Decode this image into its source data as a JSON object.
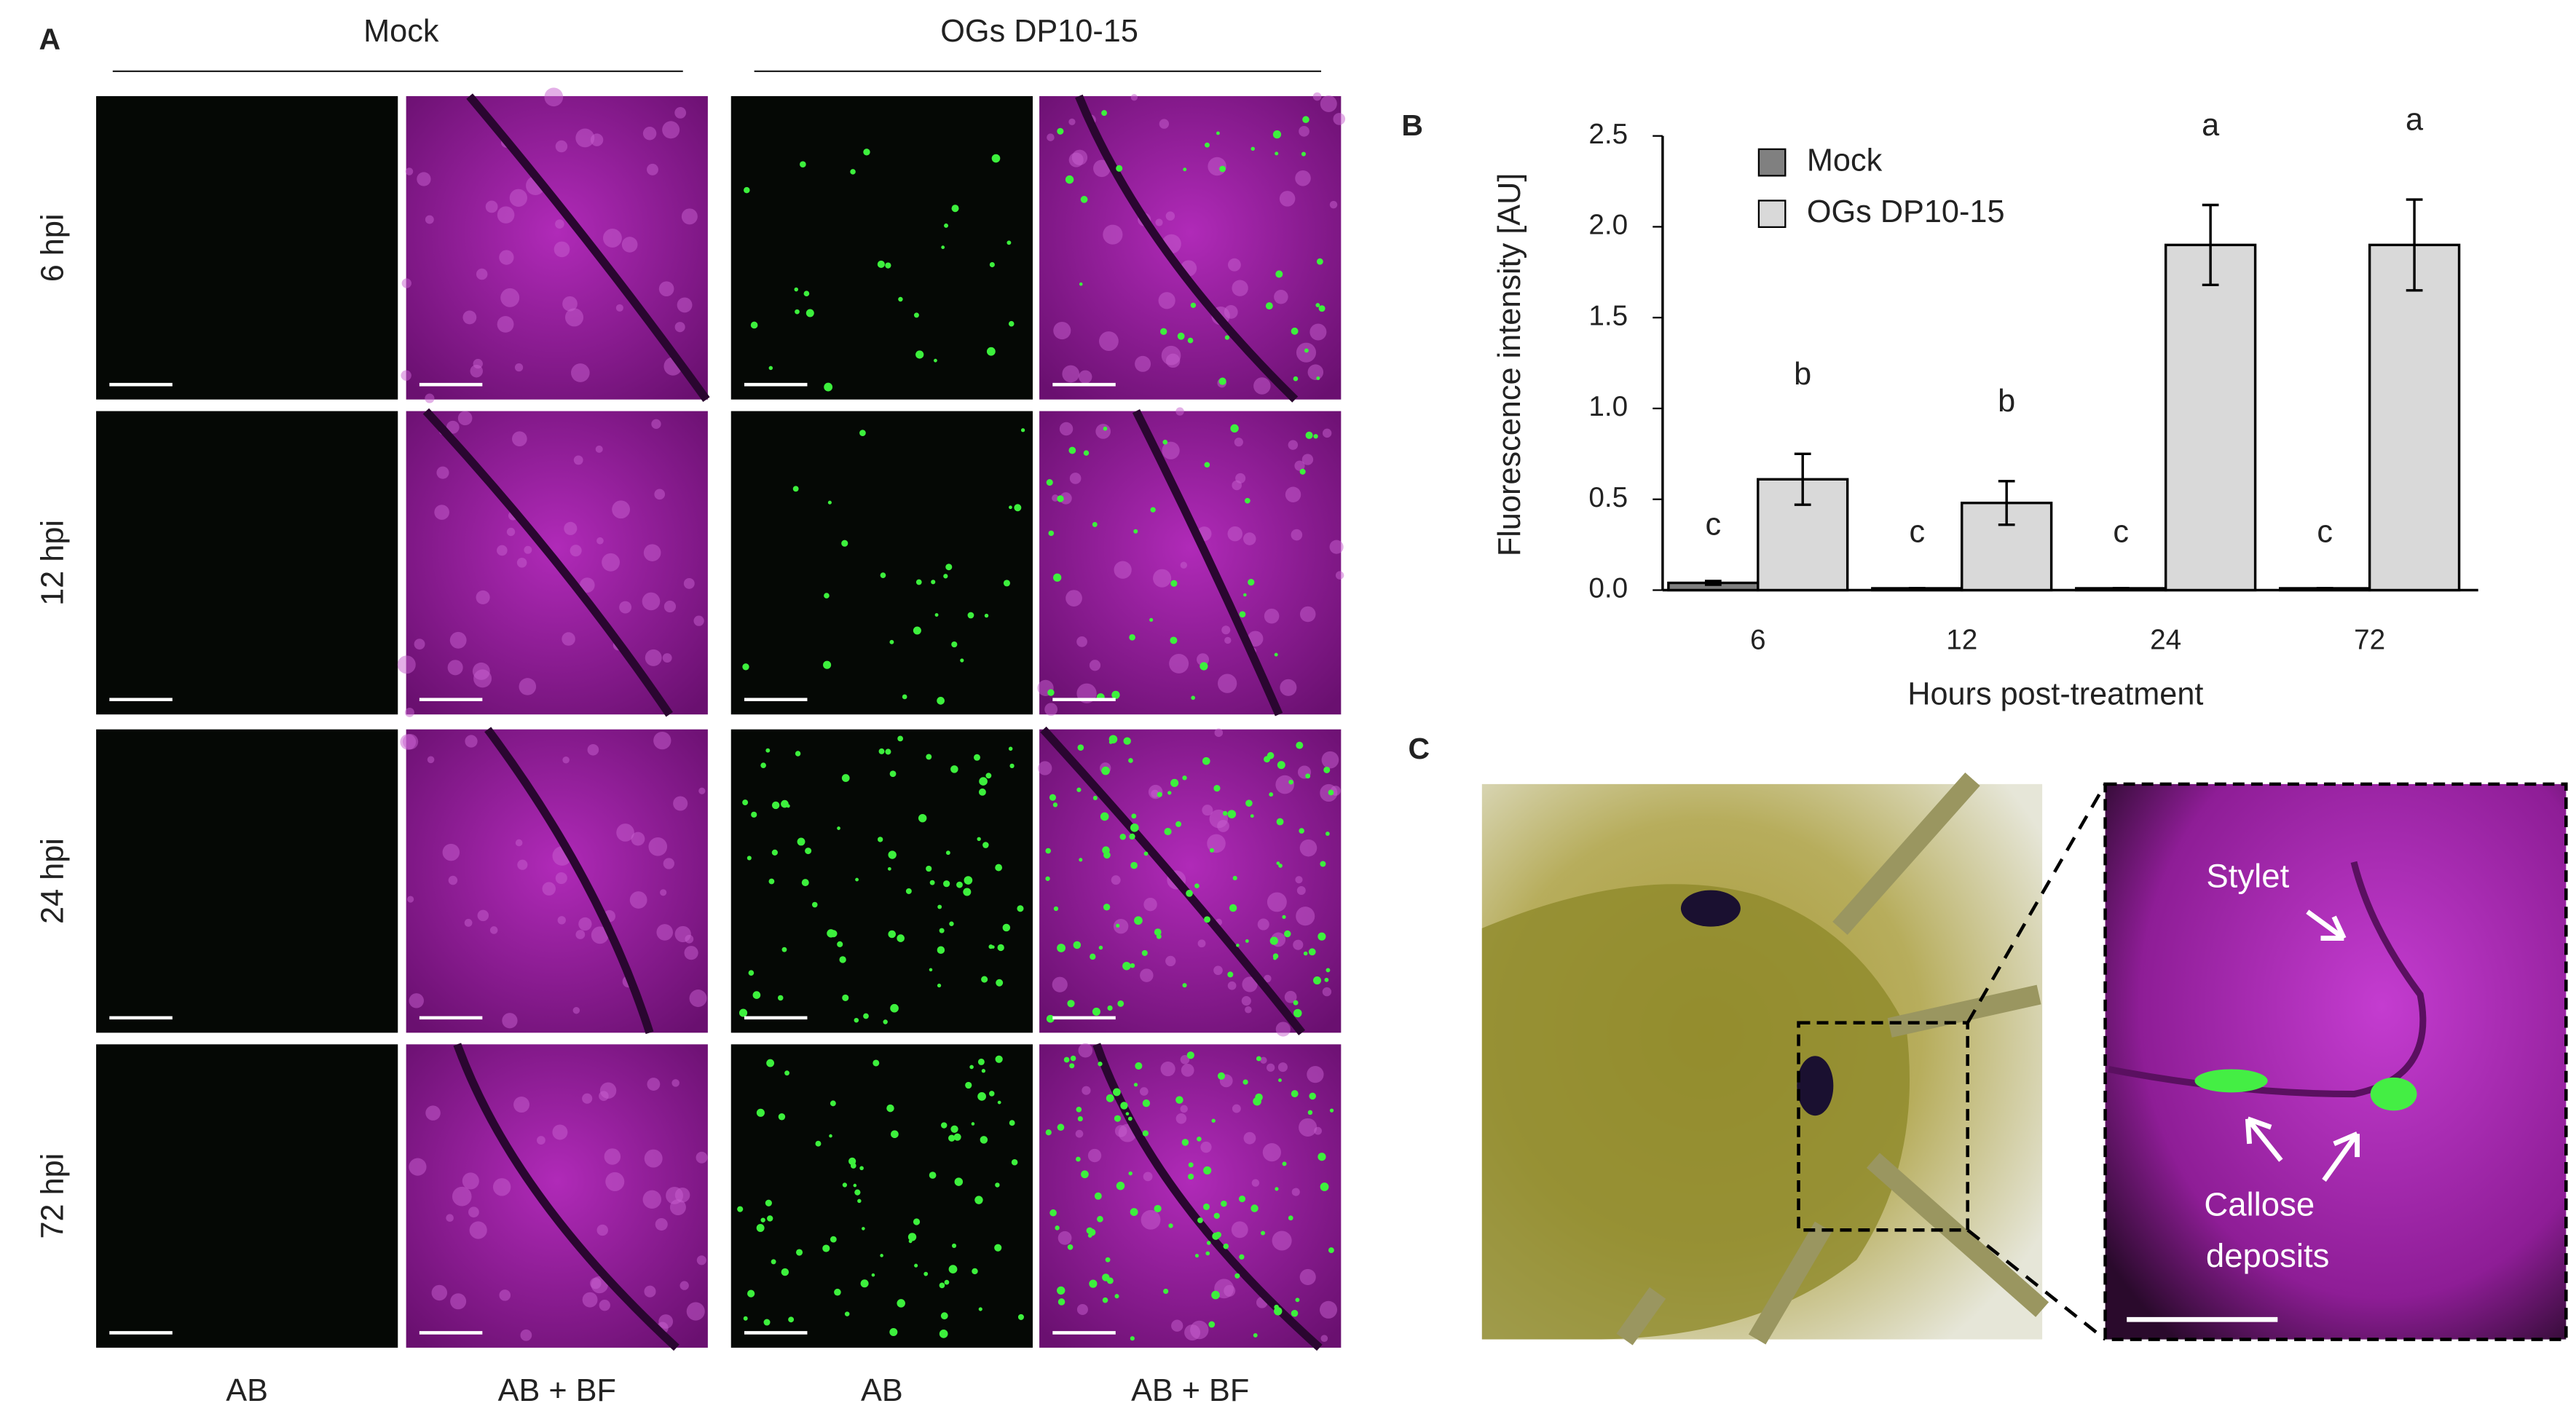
{
  "panel_a": {
    "label": "A",
    "groups": [
      "Mock",
      "OGs DP10-15"
    ],
    "rows": [
      "6 hpi",
      "12 hpi",
      "24 hpi",
      "72 hpi"
    ],
    "columns": [
      "AB",
      "AB + BF",
      "AB",
      "AB + BF"
    ]
  },
  "panel_b": {
    "label": "B"
  },
  "chart_data": {
    "type": "bar",
    "xlabel": "Hours post-treatment",
    "ylabel": "Fluorescence intensity [AU]",
    "categories": [
      "6",
      "12",
      "24",
      "72"
    ],
    "series": [
      {
        "name": "Mock",
        "color": "#808080",
        "values": [
          0.04,
          0.01,
          0.01,
          0.01
        ],
        "errors": [
          0.01,
          0,
          0,
          0
        ],
        "letters": [
          "c",
          "c",
          "c",
          "c"
        ]
      },
      {
        "name": "OGs DP10-15",
        "color": "#d9d9d9",
        "values": [
          0.61,
          0.48,
          1.9,
          1.9
        ],
        "errors": [
          0.14,
          0.12,
          0.22,
          0.25
        ],
        "letters": [
          "b",
          "b",
          "a",
          "a"
        ]
      }
    ],
    "ylim": [
      0,
      2.5
    ],
    "yticks": [
      {
        "value": 0,
        "label": "0.0"
      },
      0.5,
      {
        "value": 1,
        "label": "1.0"
      },
      1.5,
      {
        "value": 2,
        "label": "2.0"
      },
      2.5
    ],
    "legend": "upper left"
  },
  "panel_c": {
    "label": "C",
    "stylet": "Stylet",
    "callose": [
      "Callose",
      "deposits"
    ]
  }
}
